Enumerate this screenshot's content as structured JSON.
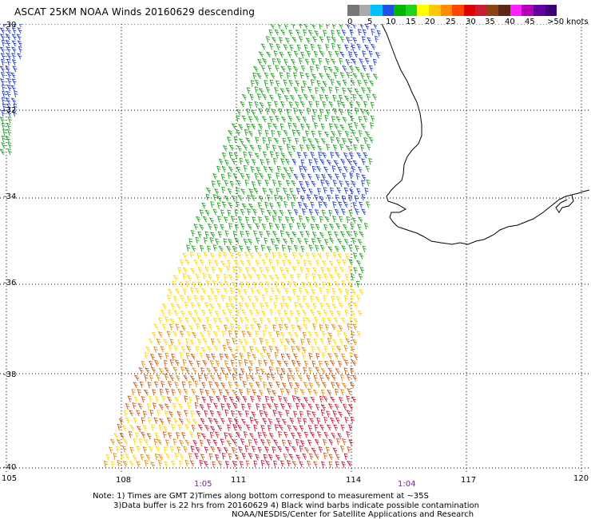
{
  "title": "ASCAT 25KM NOAA Winds 20160629 descending",
  "legend": {
    "colors": [
      "#777777",
      "#aaaaaa",
      "#00bfff",
      "#1e50e6",
      "#00b400",
      "#1ed21e",
      "#ffff00",
      "#ffc800",
      "#ff8c00",
      "#ff4500",
      "#dc0000",
      "#c81e32",
      "#8b4513",
      "#5a2814",
      "#ff1eff",
      "#b400b4",
      "#6400a0",
      "#3c0078"
    ],
    "labels": [
      "0",
      "5",
      "10",
      "15",
      "20",
      "25",
      "30",
      "35",
      "40",
      "45",
      ">50 knots"
    ]
  },
  "lat_labels": [
    "-30",
    "-32",
    "-34",
    "-36",
    "-38",
    "-40"
  ],
  "lon_labels": [
    "105",
    "108",
    "111",
    "114",
    "117",
    "120"
  ],
  "time_labels": [
    "1:05",
    "1:04"
  ],
  "notes": {
    "line1": "Note: 1) Times are GMT 2)Times along bottom correspond to measurement at ~35S",
    "line2": "3)Data buffer is 22 hrs from 20160629 4) Black wind barbs indicate possible contamination",
    "line3": "NOAA/NESDIS/Center for Satellite Applications and Research"
  },
  "wind_colors": {
    "blue": "#1e3cd2",
    "green": "#1ea01e",
    "yellow": "#ffd700",
    "orange": "#e08a00",
    "dark_orange": "#c85a14",
    "red": "#d21e2a",
    "crimson": "#c0143c"
  }
}
